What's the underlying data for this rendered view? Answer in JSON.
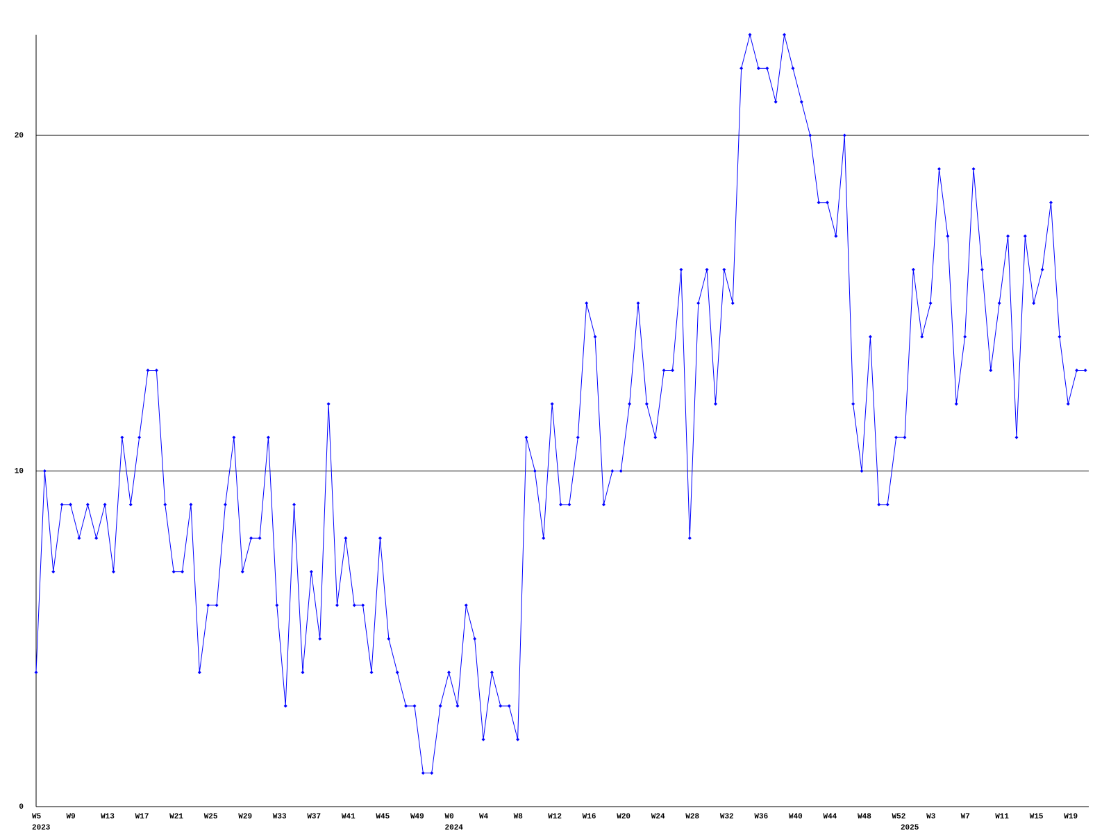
{
  "chart_data": {
    "type": "line",
    "categories": [
      "W5",
      null,
      null,
      null,
      "W9",
      null,
      null,
      null,
      "W13",
      null,
      null,
      null,
      "W17",
      null,
      null,
      null,
      "W21",
      null,
      null,
      null,
      "W25",
      null,
      null,
      null,
      "W29",
      null,
      null,
      null,
      "W33",
      null,
      null,
      null,
      "W37",
      null,
      null,
      null,
      "W41",
      null,
      null,
      null,
      "W45",
      null,
      null,
      null,
      "W49",
      null,
      null,
      null,
      "W0",
      null,
      null,
      null,
      "W4",
      null,
      null,
      null,
      "W8",
      null,
      null,
      null,
      "W12",
      null,
      null,
      null,
      "W16",
      null,
      null,
      null,
      "W20",
      null,
      null,
      null,
      "W24",
      null,
      null,
      null,
      "W28",
      null,
      null,
      null,
      "W32",
      null,
      null,
      null,
      "W36",
      null,
      null,
      null,
      "W40",
      null,
      null,
      null,
      "W44",
      null,
      null,
      null,
      "W48",
      null,
      null,
      null,
      "W52",
      null,
      null,
      null,
      "W3",
      null,
      null,
      null,
      "W7",
      null,
      null,
      null,
      "W11",
      null,
      null,
      null,
      "W15",
      null,
      null,
      null,
      "W19",
      null,
      null
    ],
    "year_labels": [
      "2023",
      null,
      null,
      null,
      null,
      null,
      null,
      null,
      null,
      null,
      null,
      null,
      null,
      null,
      null,
      null,
      null,
      null,
      null,
      null,
      null,
      null,
      null,
      null,
      null,
      null,
      null,
      null,
      null,
      null,
      null,
      null,
      null,
      null,
      null,
      null,
      null,
      null,
      null,
      null,
      null,
      null,
      null,
      null,
      null,
      null,
      null,
      null,
      "2024",
      null,
      null,
      null,
      null,
      null,
      null,
      null,
      null,
      null,
      null,
      null,
      null,
      null,
      null,
      null,
      null,
      null,
      null,
      null,
      null,
      null,
      null,
      null,
      null,
      null,
      null,
      null,
      null,
      null,
      null,
      null,
      null,
      null,
      null,
      null,
      null,
      null,
      null,
      null,
      null,
      null,
      null,
      null,
      null,
      null,
      null,
      null,
      null,
      null,
      null,
      null,
      null,
      "2025",
      null,
      null,
      null,
      null,
      null,
      null,
      null,
      null,
      null,
      null,
      null,
      null,
      null,
      null,
      null,
      null,
      null,
      null,
      null,
      null,
      null
    ],
    "values": [
      4,
      10,
      7,
      9,
      9,
      8,
      9,
      8,
      9,
      7,
      11,
      9,
      11,
      13,
      13,
      9,
      7,
      7,
      9,
      4,
      6,
      6,
      9,
      11,
      7,
      8,
      8,
      11,
      6,
      3,
      9,
      4,
      7,
      5,
      12,
      6,
      8,
      6,
      6,
      4,
      8,
      5,
      4,
      3,
      3,
      1,
      1,
      3,
      4,
      3,
      6,
      5,
      2,
      4,
      3,
      3,
      2,
      11,
      10,
      8,
      12,
      9,
      9,
      11,
      15,
      14,
      9,
      10,
      10,
      12,
      15,
      12,
      11,
      13,
      13,
      16,
      8,
      15,
      16,
      12,
      16,
      15,
      22,
      23,
      22,
      22,
      21,
      23,
      22,
      21,
      20,
      18,
      18,
      17,
      20,
      12,
      10,
      14,
      9,
      9,
      11,
      11,
      16,
      14,
      15,
      19,
      17,
      12,
      14,
      19,
      16,
      13,
      15,
      17,
      11,
      17,
      15,
      16,
      18,
      14,
      12,
      13,
      13
    ],
    "color": "#0000ff",
    "ylim": [
      0,
      23
    ],
    "yticks": [
      0,
      10,
      20
    ],
    "grid": true
  }
}
